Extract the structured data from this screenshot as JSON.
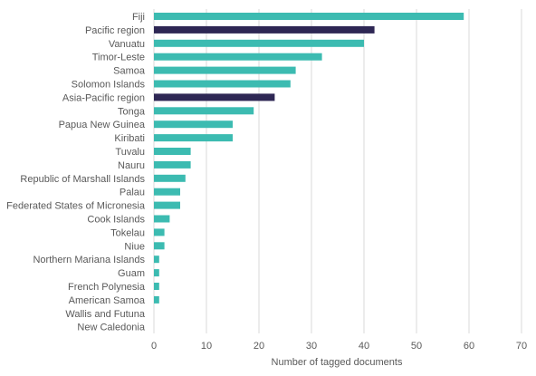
{
  "chart_data": {
    "type": "bar",
    "orientation": "horizontal",
    "title": "",
    "xlabel": "Number of tagged documents",
    "ylabel": "",
    "xlim": [
      0,
      70
    ],
    "xticks": [
      0,
      10,
      20,
      30,
      40,
      50,
      60,
      70
    ],
    "grid": true,
    "legend": "none",
    "colors": {
      "country": "#3cbbb1",
      "region": "#2e2754"
    },
    "categories": [
      "Fiji",
      "Pacific region",
      "Vanuatu",
      "Timor-Leste",
      "Samoa",
      "Solomon Islands",
      "Asia-Pacific region",
      "Tonga",
      "Papua New Guinea",
      "Kiribati",
      "Tuvalu",
      "Nauru",
      "Republic of Marshall Islands",
      "Palau",
      "Federated States of Micronesia",
      "Cook Islands",
      "Tokelau",
      "Niue",
      "Northern Mariana Islands",
      "Guam",
      "French Polynesia",
      "American Samoa",
      "Wallis and Futuna",
      "New Caledonia"
    ],
    "values": [
      59,
      42,
      40,
      32,
      27,
      26,
      23,
      19,
      15,
      15,
      7,
      7,
      6,
      5,
      5,
      3,
      2,
      2,
      1,
      1,
      1,
      1,
      0,
      0
    ],
    "kinds": [
      "country",
      "region",
      "country",
      "country",
      "country",
      "country",
      "region",
      "country",
      "country",
      "country",
      "country",
      "country",
      "country",
      "country",
      "country",
      "country",
      "country",
      "country",
      "country",
      "country",
      "country",
      "country",
      "country",
      "country"
    ]
  }
}
